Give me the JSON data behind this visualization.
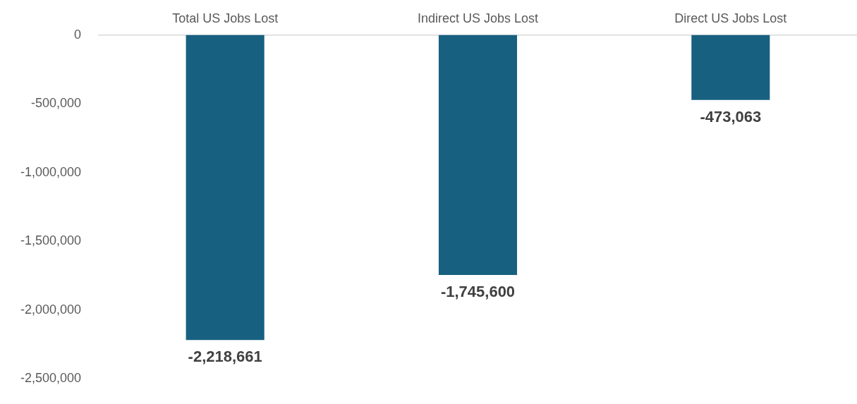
{
  "chart_data": {
    "type": "bar",
    "categories": [
      "Total US Jobs Lost",
      "Indirect US Jobs Lost",
      "Direct US Jobs Lost"
    ],
    "values": [
      -2218661,
      -1745600,
      -473063
    ],
    "value_labels": [
      "-2,218,661",
      "-1,745,600",
      "-473,063"
    ],
    "color": "#17607f",
    "ylim": [
      -2500000,
      0
    ],
    "yticks": [
      {
        "value": -2500000,
        "label": "-2,500,000"
      },
      {
        "value": -2000000,
        "label": "-2,000,000"
      },
      {
        "value": -1500000,
        "label": "-1,500,000"
      },
      {
        "value": -1000000,
        "label": "-1,000,000"
      },
      {
        "value": -500000,
        "label": "-500,000"
      },
      0
    ],
    "grid": false,
    "legend": false
  }
}
